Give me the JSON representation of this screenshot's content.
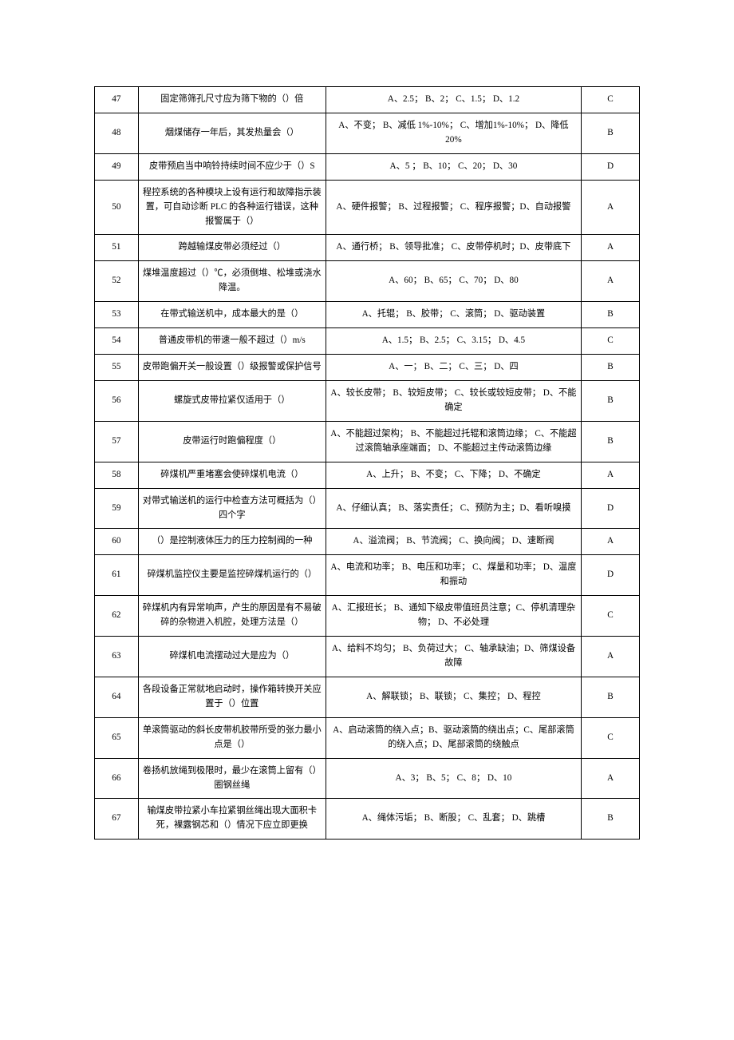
{
  "rows": [
    {
      "n": "47",
      "q": "固定筛筛孔尺寸应为筛下物的（）倍",
      "opt": "A、2.5；  B、2；  C、1.5；  D、1.2",
      "a": "C"
    },
    {
      "n": "48",
      "q": "烟煤储存一年后，其发热量会（）",
      "opt": "A、不变；  B、减低 1%-10%；  C、增加1%-10%；  D、降低 20%",
      "a": "B"
    },
    {
      "n": "49",
      "q": "皮带预启当中响铃持续时间不应少于（）S",
      "opt": "A、5 ；  B、10；  C、20；  D、30",
      "a": "D"
    },
    {
      "n": "50",
      "q": "程控系统的各种模块上设有运行和故障指示装置，可自动诊断 PLC 的各种运行错误，这种报警属于（）",
      "opt": "A、硬件报警；  B、过程报警；  C、程序报警；D、自动报警",
      "a": "A"
    },
    {
      "n": "51",
      "q": "跨越输煤皮带必须经过（）",
      "opt": "A、通行桥；  B、领导批准；  C、皮带停机时；D、皮带底下",
      "a": "A"
    },
    {
      "n": "52",
      "q": "煤堆温度超过（）℃，必须倒堆、松堆或浇水降温。",
      "opt": "A、60；  B、65；  C、70；  D、80",
      "a": "A"
    },
    {
      "n": "53",
      "q": "在带式输送机中，成本最大的是（）",
      "opt": "A、托辊；  B、胶带；  C、滚筒；  D、驱动装置",
      "a": "B"
    },
    {
      "n": "54",
      "q": "普通皮带机的带速一般不超过（）m/s",
      "opt": "A、1.5；  B、2.5；  C、3.15；  D、4.5",
      "a": "C"
    },
    {
      "n": "55",
      "q": "皮带跑偏开关一般设置（）级报警或保护信号",
      "opt": "A、一；  B、二；  C、三；  D、四",
      "a": "B"
    },
    {
      "n": "56",
      "q": "螺旋式皮带拉紧仅适用于（）",
      "opt": "A、较长皮带；  B、较短皮带；  C、较长或较短皮带；  D、不能确定",
      "a": "B"
    },
    {
      "n": "57",
      "q": "皮带运行时跑偏程度（）",
      "opt": "A、不能超过架构；  B、不能超过托辊和滚筒边缘；  C、不能超过滚筒轴承座端面；  D、不能超过主传动滚筒边缘",
      "a": "B"
    },
    {
      "n": "58",
      "q": "碎煤机严重堵塞会使碎煤机电流（）",
      "opt": "A、上升；  B、不变；  C、下降；  D、不确定",
      "a": "A"
    },
    {
      "n": "59",
      "q": "对带式输送机的运行中检查方法可概括为（）四个字",
      "opt": "A、仔细认真；  B、落实责任；  C、预防为主；D、看听嗅摸",
      "a": "D"
    },
    {
      "n": "60",
      "q": "（）是控制液体压力的压力控制阀的一种",
      "opt": "A、溢流阀；  B、节流阀；  C、换向阀；  D、速断阀",
      "a": "A"
    },
    {
      "n": "61",
      "q": "碎煤机监控仪主要是监控碎煤机运行的（）",
      "opt": "A、电流和功率；  B、电压和功率；  C、煤量和功率；  D、温度和振动",
      "a": "D"
    },
    {
      "n": "62",
      "q": "碎煤机内有异常响声，产生的原因是有不易破碎的杂物进入机腔，处理方法是（）",
      "opt": "A、汇报班长；  B、通知下级皮带值班员注意；C、停机清理杂物；  D、不必处理",
      "a": "C"
    },
    {
      "n": "63",
      "q": "碎煤机电流摆动过大是应为（）",
      "opt": "A、给料不均匀；  B、负荷过大；  C、轴承缺油；D、筛煤设备故障",
      "a": "A"
    },
    {
      "n": "64",
      "q": "各段设备正常就地启动时，操作箱转换开关应置于（）位置",
      "opt": "A、解联锁；  B、联锁；  C、集控；  D、程控",
      "a": "B"
    },
    {
      "n": "65",
      "q": "单滚筒驱动的斜长皮带机胶带所受的张力最小点是（）",
      "opt": "A、启动滚筒的绕入点；B、驱动滚筒的绕出点；C、尾部滚筒的绕入点；D、尾部滚筒的绕触点",
      "a": "C"
    },
    {
      "n": "66",
      "q": "卷扬机放绳到极限时，最少在滚筒上留有（）圈钢丝绳",
      "opt": "A、3；  B、5；  C、8；  D、10",
      "a": "A"
    },
    {
      "n": "67",
      "q": "输煤皮带拉紧小车拉紧钢丝绳出现大面积卡死，裸露钢芯和（）情况下应立即更换",
      "opt": "A、绳体污垢；  B、断股；  C、乱套；  D、跳槽",
      "a": "B"
    }
  ]
}
